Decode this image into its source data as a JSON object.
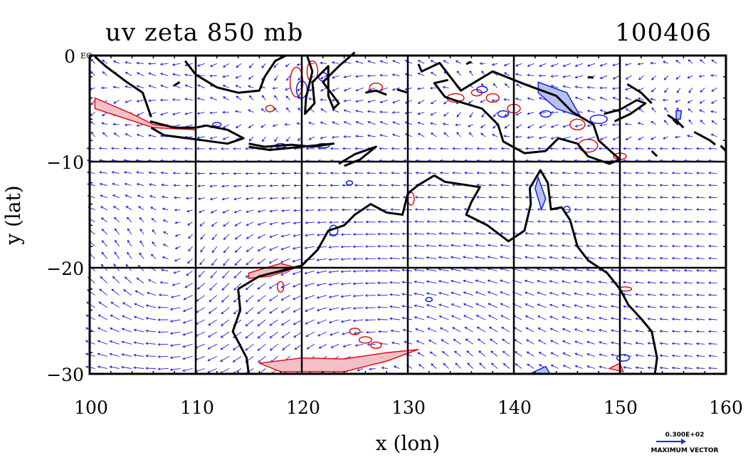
{
  "title": "uv zeta 850 mb",
  "date_label": "100406",
  "xlabel": "x (lon)",
  "ylabel": "y (lat)",
  "x_ticks": [
    "100",
    "110",
    "120",
    "130",
    "140",
    "150",
    "160"
  ],
  "y_ticks": [
    "0",
    "−10",
    "−20",
    "−30"
  ],
  "eq_label": "EQ",
  "max_vector_value": "0.300E+02",
  "max_vector_label": "MAXIMUM VECTOR",
  "colors": {
    "coast": "#000000",
    "grid": "#000000",
    "vector": "#2020e0",
    "pos_contour": "#e01010",
    "pos_fill": "#f4c0c8",
    "neg_contour": "#1020e0",
    "neg_fill": "#b8c0f0"
  },
  "map": {
    "projection": "lon-lat",
    "lon_range": [
      100,
      160
    ],
    "lat_range": [
      -30,
      0
    ],
    "grid_lons": [
      110,
      120,
      130,
      140,
      150
    ],
    "grid_lats": [
      -10,
      -20
    ]
  }
}
